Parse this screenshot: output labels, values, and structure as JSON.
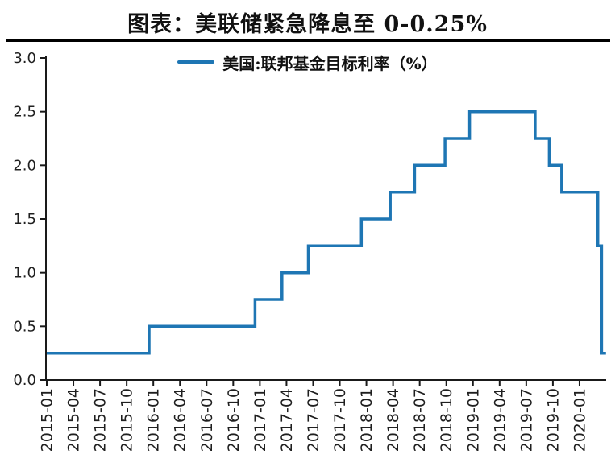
{
  "header": {
    "title": "图表：美联储紧急降息至 0-0.25%"
  },
  "chart_data": {
    "type": "line",
    "subtype": "step-after",
    "title": "图表：美联储紧急降息至 0-0.25%",
    "legend": {
      "label": "美国:联邦基金目标利率（%）",
      "position": "top-center"
    },
    "x_axis": {
      "range": [
        "2015-01",
        "2020-03"
      ],
      "tick_labels": [
        "2015-01",
        "2015-04",
        "2015-07",
        "2015-10",
        "2016-01",
        "2016-04",
        "2016-07",
        "2016-10",
        "2017-01",
        "2017-04",
        "2017-07",
        "2017-10",
        "2018-01",
        "2018-04",
        "2018-07",
        "2018-10",
        "2019-01",
        "2019-04",
        "2019-07",
        "2019-10",
        "2020-01"
      ],
      "tick_rotation_deg": -90,
      "grid": false
    },
    "y_axis": {
      "range": [
        0.0,
        3.0
      ],
      "tick_labels": [
        "0.0",
        "0.5",
        "1.0",
        "1.5",
        "2.0",
        "2.5",
        "3.0"
      ],
      "grid": false
    },
    "series": [
      {
        "name": "美国:联邦基金目标利率（%）",
        "color": "#1E76B4",
        "line_width": 3.5,
        "start": {
          "date": "2015-01-01",
          "value": 0.25
        },
        "changes": [
          {
            "date": "2015-12-17",
            "value": 0.5
          },
          {
            "date": "2016-12-15",
            "value": 0.75
          },
          {
            "date": "2017-03-16",
            "value": 1.0
          },
          {
            "date": "2017-06-15",
            "value": 1.25
          },
          {
            "date": "2017-12-14",
            "value": 1.5
          },
          {
            "date": "2018-03-22",
            "value": 1.75
          },
          {
            "date": "2018-06-14",
            "value": 2.0
          },
          {
            "date": "2018-09-27",
            "value": 2.25
          },
          {
            "date": "2018-12-20",
            "value": 2.5
          },
          {
            "date": "2019-08-01",
            "value": 2.25
          },
          {
            "date": "2019-09-19",
            "value": 2.0
          },
          {
            "date": "2019-10-31",
            "value": 1.75
          },
          {
            "date": "2020-03-03",
            "value": 1.25
          },
          {
            "date": "2020-03-16",
            "value": 0.25
          }
        ],
        "end_date": "2020-03-31"
      }
    ],
    "colors": {
      "line": "#1E76B4",
      "axis": "#1a1a1a",
      "tick_text": "#1f1f1f",
      "title_rule": "#000000"
    }
  }
}
